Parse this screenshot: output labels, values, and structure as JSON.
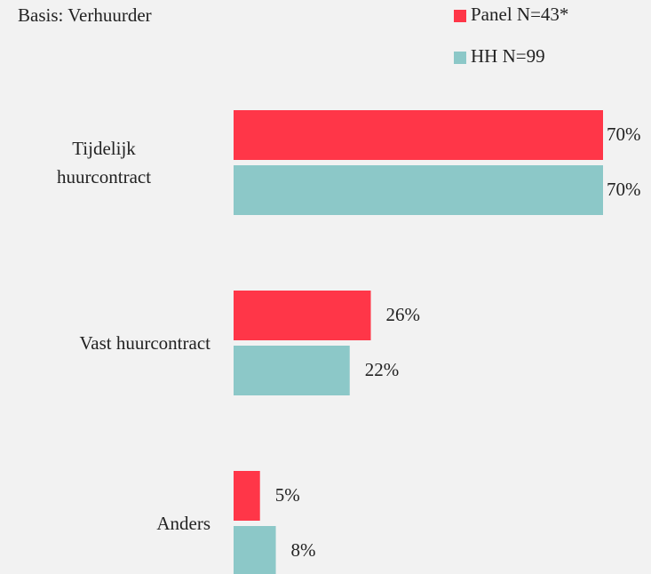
{
  "chart_data": {
    "type": "hbar",
    "subtitle": "Basis: Verhuurder",
    "categories": [
      "Tijdelijk\nhuurcontract",
      "Vast huurcontract",
      "Anders"
    ],
    "series": [
      {
        "name": "Panel N=43*",
        "color": "#ff3648",
        "values": [
          70,
          26,
          5
        ],
        "value_labels": [
          "70%",
          "26%",
          "5%"
        ]
      },
      {
        "name": "HH N=99",
        "color": "#8cc8c8",
        "values": [
          70,
          22,
          8
        ],
        "value_labels": [
          "70%",
          "22%",
          "8%"
        ]
      }
    ],
    "legend": "top-right"
  }
}
